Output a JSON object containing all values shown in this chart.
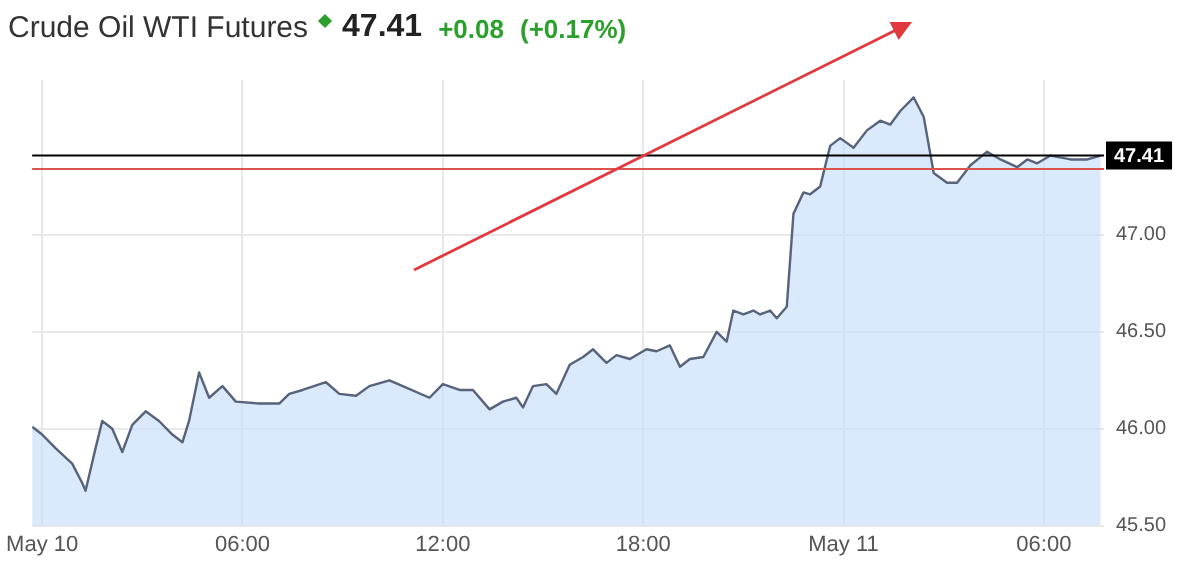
{
  "chart_data": {
    "type": "area",
    "title": "Crude Oil WTI Futures",
    "annotations": [
      "47.41",
      "+0.08",
      "(+0.17%)"
    ],
    "x": [
      "--05-09T23:42",
      "--05-10T00:00",
      "--05-10T00:24",
      "--05-10T00:54",
      "--05-10T01:12",
      "--05-10T01:18",
      "--05-10T01:36",
      "--05-10T01:48",
      "--05-10T02:06",
      "--05-10T02:24",
      "--05-10T02:42",
      "--05-10T03:06",
      "--05-10T03:30",
      "--05-10T03:54",
      "--05-10T04:12",
      "--05-10T04:24",
      "--05-10T04:42",
      "--05-10T05:00",
      "--05-10T05:24",
      "--05-10T05:48",
      "--05-10T06:30",
      "--05-10T07:06",
      "--05-10T07:24",
      "--05-10T07:48",
      "--05-10T08:30",
      "--05-10T08:54",
      "--05-10T09:24",
      "--05-10T09:48",
      "--05-10T10:24",
      "--05-10T10:48",
      "--05-10T11:36",
      "--05-10T12:00",
      "--05-10T12:30",
      "--05-10T12:54",
      "--05-10T13:24",
      "--05-10T13:48",
      "--05-10T14:12",
      "--05-10T14:24",
      "--05-10T14:42",
      "--05-10T15:06",
      "--05-10T15:24",
      "--05-10T15:48",
      "--05-10T16:12",
      "--05-10T16:30",
      "--05-10T16:54",
      "--05-10T17:12",
      "--05-10T17:36",
      "--05-10T18:06",
      "--05-10T18:24",
      "--05-10T18:48",
      "--05-10T19:06",
      "--05-10T19:24",
      "--05-10T19:48",
      "--05-10T20:12",
      "--05-10T20:30",
      "--05-10T20:42",
      "--05-10T21:00",
      "--05-10T21:18",
      "--05-10T21:30",
      "--05-10T21:48",
      "--05-10T22:00",
      "--05-10T22:18",
      "--05-10T22:30",
      "--05-10T22:48",
      "--05-10T23:00",
      "--05-10T23:18",
      "--05-10T23:36",
      "--05-10T23:54",
      "--05-11T00:18",
      "--05-11T00:42",
      "--05-11T01:06",
      "--05-11T01:24",
      "--05-11T01:42",
      "--05-11T02:06",
      "--05-11T02:24",
      "--05-11T02:42",
      "--05-11T03:06",
      "--05-11T03:24",
      "--05-11T03:48",
      "--05-11T04:18",
      "--05-11T04:42",
      "--05-11T05:12",
      "--05-11T05:30",
      "--05-11T05:48",
      "--05-11T06:12",
      "--05-11T06:48",
      "--05-11T07:18",
      "--05-11T07:42"
    ],
    "series": [
      {
        "color": "#56637a",
        "values": [
          46.01,
          45.97,
          45.9,
          45.82,
          45.72,
          45.68,
          45.9,
          46.04,
          46.0,
          45.88,
          46.02,
          46.09,
          46.04,
          45.97,
          45.93,
          46.04,
          46.29,
          46.16,
          46.22,
          46.14,
          46.13,
          46.13,
          46.18,
          46.2,
          46.24,
          46.18,
          46.17,
          46.22,
          46.25,
          46.22,
          46.16,
          46.23,
          46.2,
          46.2,
          46.1,
          46.14,
          46.16,
          46.11,
          46.22,
          46.23,
          46.18,
          46.33,
          46.37,
          46.41,
          46.34,
          46.38,
          46.36,
          46.41,
          46.4,
          46.43,
          46.32,
          46.36,
          46.37,
          46.5,
          46.45,
          46.61,
          46.59,
          46.61,
          46.59,
          46.61,
          46.57,
          46.63,
          47.11,
          47.22,
          47.21,
          47.25,
          47.46,
          47.5,
          47.45,
          47.54,
          47.59,
          47.57,
          47.64,
          47.71,
          47.61,
          47.32,
          47.27,
          47.27,
          47.36,
          47.43,
          47.39,
          47.35,
          47.39,
          47.37,
          47.41,
          47.39,
          47.39,
          47.41
        ]
      }
    ],
    "xlim": [
      "--05-09T23:42",
      "--05-11T07:48"
    ],
    "xticks": [
      {
        "value": "--05-10",
        "label": "May 10"
      },
      {
        "value": "--05-10T06:00",
        "label": "06:00"
      },
      {
        "value": "--05-10T12:00",
        "label": "12:00"
      },
      {
        "value": "--05-10T18:00",
        "label": "18:00"
      },
      {
        "value": "--05-11",
        "label": "May 11"
      },
      {
        "value": "--05-11T06:00",
        "label": "06:00"
      }
    ],
    "ylim": [
      45.5,
      47.8
    ],
    "yticks": [
      {
        "value": 45.5,
        "label": "45.50"
      },
      {
        "value": 46,
        "label": "46.00"
      },
      {
        "value": 46.5,
        "label": "46.50"
      },
      {
        "value": 47,
        "label": "47.00"
      }
    ],
    "ref_lines": [
      {
        "axis": "y",
        "value": 47.41,
        "label": "47.41",
        "color": "#000000"
      },
      {
        "axis": "y",
        "value": 47.34,
        "color": "#d9534f"
      }
    ],
    "grid": true,
    "legend": false
  }
}
